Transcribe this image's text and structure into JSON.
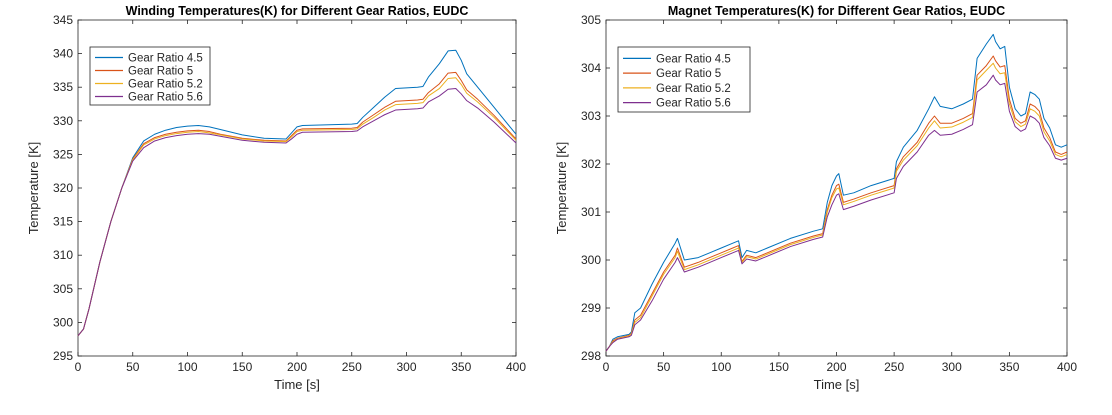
{
  "colors": {
    "series": [
      "#0072bd",
      "#d95319",
      "#edb120",
      "#7e2f8e"
    ],
    "axis": "#262626",
    "background": "#ffffff"
  },
  "chart_data": [
    {
      "type": "line",
      "title": "Winding Temperatures(K) for Different Gear Ratios, EUDC",
      "xlabel": "Time [s]",
      "ylabel": "Temperature [K]",
      "xlim": [
        0,
        400
      ],
      "ylim": [
        295,
        345
      ],
      "xticks": [
        0,
        50,
        100,
        150,
        200,
        250,
        300,
        350,
        400
      ],
      "yticks": [
        295,
        300,
        305,
        310,
        315,
        320,
        325,
        330,
        335,
        340,
        345
      ],
      "grid": false,
      "legend_position": "top-left",
      "series": [
        {
          "name": "Gear Ratio 4.5",
          "x": [
            0,
            5,
            10,
            20,
            30,
            40,
            50,
            60,
            70,
            80,
            90,
            100,
            110,
            120,
            130,
            150,
            170,
            190,
            195,
            200,
            205,
            250,
            255,
            260,
            270,
            280,
            290,
            310,
            315,
            320,
            330,
            338,
            345,
            350,
            355,
            365,
            380,
            400
          ],
          "y": [
            298,
            299,
            302,
            309,
            315,
            320,
            324.5,
            327,
            328,
            328.6,
            329,
            329.2,
            329.3,
            329.1,
            328.7,
            327.9,
            327.4,
            327.3,
            328.2,
            329.1,
            329.3,
            329.5,
            329.6,
            330.5,
            332,
            333.5,
            334.8,
            335,
            335.1,
            336.5,
            338.5,
            340.4,
            340.5,
            339,
            337,
            335,
            332,
            328
          ]
        },
        {
          "name": "Gear Ratio 5",
          "x": [
            0,
            5,
            10,
            20,
            30,
            40,
            50,
            60,
            70,
            80,
            90,
            100,
            110,
            120,
            130,
            150,
            170,
            190,
            195,
            200,
            205,
            250,
            255,
            260,
            270,
            280,
            290,
            310,
            315,
            320,
            330,
            338,
            345,
            350,
            355,
            365,
            380,
            400
          ],
          "y": [
            298,
            299,
            302,
            309,
            315,
            320,
            324.3,
            326.6,
            327.5,
            328,
            328.3,
            328.5,
            328.6,
            328.4,
            328,
            327.4,
            327.1,
            327,
            327.8,
            328.6,
            328.8,
            328.9,
            329,
            329.8,
            330.9,
            332,
            332.9,
            333.1,
            333.2,
            334.2,
            335.5,
            337.1,
            337.2,
            336,
            334.6,
            333.2,
            330.8,
            327.3
          ]
        },
        {
          "name": "Gear Ratio 5.2",
          "x": [
            0,
            5,
            10,
            20,
            30,
            40,
            50,
            60,
            70,
            80,
            90,
            100,
            110,
            120,
            130,
            150,
            170,
            190,
            195,
            200,
            205,
            250,
            255,
            260,
            270,
            280,
            290,
            310,
            315,
            320,
            330,
            338,
            345,
            350,
            355,
            365,
            380,
            400
          ],
          "y": [
            298,
            299,
            302,
            309,
            315,
            320,
            324.2,
            326.4,
            327.3,
            327.8,
            328.1,
            328.3,
            328.4,
            328.2,
            327.9,
            327.3,
            327,
            326.9,
            327.6,
            328.4,
            328.6,
            328.7,
            328.8,
            329.5,
            330.5,
            331.6,
            332.4,
            332.6,
            332.7,
            333.7,
            334.8,
            336.3,
            336.4,
            335.4,
            334.1,
            332.8,
            330.5,
            327.1
          ]
        },
        {
          "name": "Gear Ratio 5.6",
          "x": [
            0,
            5,
            10,
            20,
            30,
            40,
            50,
            60,
            70,
            80,
            90,
            100,
            110,
            120,
            130,
            150,
            170,
            190,
            195,
            200,
            205,
            250,
            255,
            260,
            270,
            280,
            290,
            310,
            315,
            320,
            330,
            338,
            345,
            350,
            355,
            365,
            380,
            400
          ],
          "y": [
            298,
            299,
            302,
            309,
            315,
            320,
            324,
            326,
            327,
            327.5,
            327.8,
            328,
            328.1,
            328,
            327.7,
            327.1,
            326.8,
            326.7,
            327.3,
            328,
            328.3,
            328.4,
            328.5,
            329.1,
            330,
            330.9,
            331.6,
            331.8,
            331.9,
            332.8,
            333.7,
            334.7,
            334.8,
            334,
            333,
            331.9,
            329.8,
            326.7
          ]
        }
      ]
    },
    {
      "type": "line",
      "title": "Magnet Temperatures(K) for Different Gear Ratios, EUDC",
      "xlabel": "Time [s]",
      "ylabel": "Temperature [K]",
      "xlim": [
        0,
        400
      ],
      "ylim": [
        298,
        305
      ],
      "xticks": [
        0,
        50,
        100,
        150,
        200,
        250,
        300,
        350,
        400
      ],
      "yticks": [
        298,
        299,
        300,
        301,
        302,
        303,
        304,
        305
      ],
      "ytick_labels": [
        "298",
        "299",
        "300",
        "301",
        "302",
        "303",
        "304",
        "305"
      ],
      "grid": false,
      "legend_position": "top-left",
      "series": [
        {
          "name": "Gear Ratio 4.5",
          "x": [
            0,
            3,
            6,
            10,
            20,
            22,
            25,
            30,
            40,
            50,
            60,
            62,
            68,
            80,
            90,
            100,
            110,
            115,
            118,
            122,
            130,
            140,
            160,
            180,
            188,
            192,
            196,
            200,
            202,
            206,
            215,
            230,
            250,
            252,
            258,
            270,
            280,
            285,
            290,
            300,
            310,
            318,
            322,
            330,
            336,
            338,
            342,
            346,
            350,
            355,
            360,
            364,
            368,
            372,
            376,
            380,
            385,
            390,
            395,
            400
          ],
          "y": [
            298.1,
            298.2,
            298.35,
            298.4,
            298.45,
            298.5,
            298.9,
            299,
            299.5,
            299.95,
            300.35,
            300.45,
            300,
            300.05,
            300.15,
            300.25,
            300.35,
            300.4,
            300.05,
            300.2,
            300.15,
            300.25,
            300.45,
            300.6,
            300.65,
            301.2,
            301.55,
            301.75,
            301.8,
            301.35,
            301.4,
            301.55,
            301.7,
            302.05,
            302.35,
            302.7,
            303.15,
            303.4,
            303.2,
            303.15,
            303.25,
            303.35,
            304.2,
            304.5,
            304.7,
            304.55,
            304.4,
            304.45,
            303.6,
            303.15,
            303,
            303.05,
            303.5,
            303.45,
            303.35,
            302.95,
            302.75,
            302.4,
            302.35,
            302.4
          ]
        },
        {
          "name": "Gear Ratio 5",
          "x": [
            0,
            3,
            6,
            10,
            20,
            22,
            25,
            30,
            40,
            50,
            60,
            62,
            68,
            80,
            90,
            100,
            110,
            115,
            118,
            122,
            130,
            140,
            160,
            180,
            188,
            192,
            196,
            200,
            202,
            206,
            215,
            230,
            250,
            252,
            258,
            270,
            280,
            285,
            290,
            300,
            310,
            318,
            322,
            330,
            336,
            338,
            342,
            346,
            350,
            355,
            360,
            364,
            368,
            372,
            376,
            380,
            385,
            390,
            395,
            400
          ],
          "y": [
            298.1,
            298.2,
            298.32,
            298.37,
            298.43,
            298.47,
            298.75,
            298.85,
            299.3,
            299.75,
            300.1,
            300.25,
            299.85,
            299.95,
            300.05,
            300.15,
            300.25,
            300.3,
            299.97,
            300.1,
            300.05,
            300.15,
            300.35,
            300.5,
            300.55,
            301.05,
            301.35,
            301.55,
            301.58,
            301.2,
            301.27,
            301.4,
            301.55,
            301.9,
            302.15,
            302.45,
            302.85,
            303,
            302.85,
            302.85,
            302.95,
            303.05,
            303.85,
            304.05,
            304.25,
            304.15,
            304.02,
            304.05,
            303.35,
            302.95,
            302.85,
            302.9,
            303.25,
            303.2,
            303.1,
            302.75,
            302.55,
            302.25,
            302.2,
            302.25
          ]
        },
        {
          "name": "Gear Ratio 5.2",
          "x": [
            0,
            3,
            6,
            10,
            20,
            22,
            25,
            30,
            40,
            50,
            60,
            62,
            68,
            80,
            90,
            100,
            110,
            115,
            118,
            122,
            130,
            140,
            160,
            180,
            188,
            192,
            196,
            200,
            202,
            206,
            215,
            230,
            250,
            252,
            258,
            270,
            280,
            285,
            290,
            300,
            310,
            318,
            322,
            330,
            336,
            338,
            342,
            346,
            350,
            355,
            360,
            364,
            368,
            372,
            376,
            380,
            385,
            390,
            395,
            400
          ],
          "y": [
            298.1,
            298.2,
            298.3,
            298.36,
            298.42,
            298.46,
            298.7,
            298.8,
            299.25,
            299.7,
            300.05,
            300.18,
            299.8,
            299.9,
            300,
            300.1,
            300.2,
            300.25,
            299.95,
            300.07,
            300.02,
            300.12,
            300.32,
            300.47,
            300.52,
            301,
            301.3,
            301.48,
            301.5,
            301.15,
            301.22,
            301.35,
            301.5,
            301.85,
            302.08,
            302.38,
            302.75,
            302.9,
            302.75,
            302.77,
            302.87,
            302.97,
            303.75,
            303.95,
            304.1,
            304.0,
            303.88,
            303.9,
            303.25,
            302.88,
            302.78,
            302.83,
            303.15,
            303.1,
            303.0,
            302.67,
            302.48,
            302.2,
            302.15,
            302.2
          ]
        },
        {
          "name": "Gear Ratio 5.6",
          "x": [
            0,
            3,
            6,
            10,
            20,
            22,
            25,
            30,
            40,
            50,
            60,
            62,
            68,
            80,
            90,
            100,
            110,
            115,
            118,
            122,
            130,
            140,
            160,
            180,
            188,
            192,
            196,
            200,
            202,
            206,
            215,
            230,
            250,
            252,
            258,
            270,
            280,
            285,
            290,
            300,
            310,
            318,
            322,
            330,
            336,
            338,
            342,
            346,
            350,
            355,
            360,
            364,
            368,
            372,
            376,
            380,
            385,
            390,
            395,
            400
          ],
          "y": [
            298.1,
            298.2,
            298.28,
            298.35,
            298.4,
            298.43,
            298.65,
            298.75,
            299.15,
            299.6,
            299.95,
            300.05,
            299.75,
            299.85,
            299.95,
            300.05,
            300.15,
            300.2,
            299.92,
            300.02,
            299.98,
            300.08,
            300.28,
            300.43,
            300.48,
            300.9,
            301.15,
            301.35,
            301.38,
            301.05,
            301.12,
            301.25,
            301.4,
            301.7,
            301.95,
            302.25,
            302.6,
            302.7,
            302.6,
            302.62,
            302.72,
            302.82,
            303.5,
            303.65,
            303.85,
            303.75,
            303.65,
            303.68,
            303.1,
            302.78,
            302.68,
            302.73,
            303.0,
            302.95,
            302.85,
            302.55,
            302.38,
            302.12,
            302.08,
            302.12
          ]
        }
      ]
    }
  ]
}
